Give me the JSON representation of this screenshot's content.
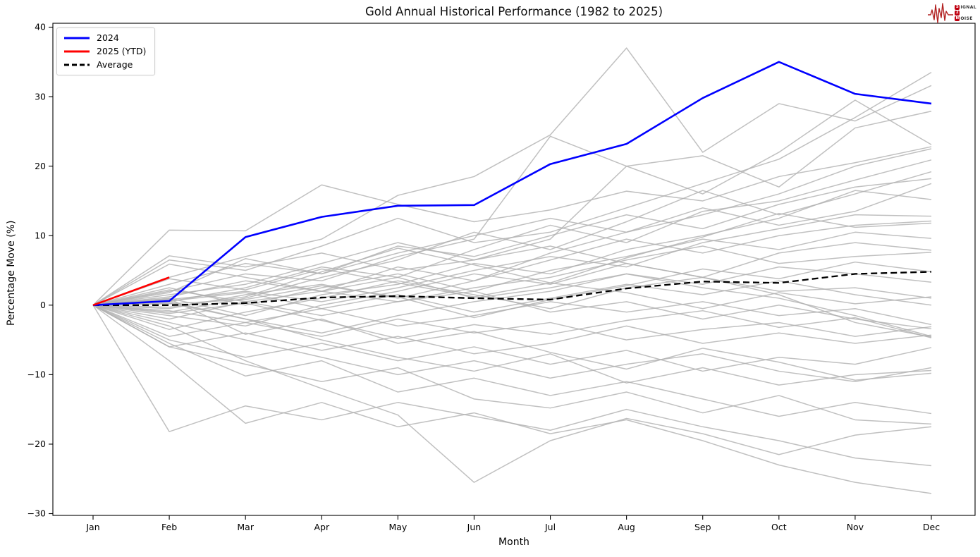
{
  "title": "Gold Annual Historical Performance (1982 to 2025)",
  "axes": {
    "x_label": "Month",
    "y_label": "Percentage Move (%)",
    "x_ticks": [
      "Jan",
      "Feb",
      "Mar",
      "Apr",
      "May",
      "Jun",
      "Jul",
      "Aug",
      "Sep",
      "Oct",
      "Nov",
      "Dec"
    ],
    "y_ticks": [
      {
        "v": 40,
        "label": "40"
      },
      {
        "v": 30,
        "label": "30"
      },
      {
        "v": 20,
        "label": "20"
      },
      {
        "v": 10,
        "label": "10"
      },
      {
        "v": 0,
        "label": "0"
      },
      {
        "v": -10,
        "label": "−10"
      },
      {
        "v": -20,
        "label": "−20"
      },
      {
        "v": -30,
        "label": "−30"
      }
    ]
  },
  "legend": [
    {
      "label": "2024",
      "color": "#0000ff",
      "dash": false
    },
    {
      "label": "2025 (YTD)",
      "color": "#ff0000",
      "dash": false
    },
    {
      "label": "Average",
      "color": "#000000",
      "dash": true
    }
  ],
  "logo": {
    "brand": "Signal 2 Noise",
    "s": "S",
    "ignal": "IGNAL",
    "two": "2",
    "n": "N",
    "oise": "OISE",
    "waveform_color": "#b22222"
  },
  "chart_data": {
    "type": "line",
    "title": "Gold Annual Historical Performance (1982 to 2025)",
    "xlabel": "Month",
    "ylabel": "Percentage Move (%)",
    "x": [
      "Jan",
      "Feb",
      "Mar",
      "Apr",
      "May",
      "Jun",
      "Jul",
      "Aug",
      "Sep",
      "Oct",
      "Nov",
      "Dec"
    ],
    "ylim": [
      -30,
      40
    ],
    "grid": false,
    "legend_position": "upper left",
    "main_series": [
      {
        "name": "Average",
        "color": "#000000",
        "style": "dashed",
        "width": 2.3,
        "values": [
          0,
          0.0,
          0.3,
          1.1,
          1.3,
          1.0,
          0.8,
          2.4,
          3.4,
          3.2,
          4.5,
          4.8
        ]
      },
      {
        "name": "2024",
        "color": "#0000ff",
        "style": "solid",
        "width": 2.6,
        "values": [
          0,
          0.6,
          9.8,
          12.7,
          14.3,
          14.4,
          20.3,
          23.2,
          29.8,
          35.0,
          30.4,
          29.0
        ]
      },
      {
        "name": "2025 (YTD)",
        "color": "#ff0000",
        "style": "solid",
        "width": 2.6,
        "values": [
          0,
          4.0
        ]
      }
    ],
    "background_series_style": {
      "color": "#b0b0b0",
      "opacity": 0.8,
      "width": 1.5,
      "note": "individual years 1982-2023, values estimated from pixels"
    },
    "background_series": [
      {
        "name": "hist-01",
        "values": [
          0,
          4.0,
          7.0,
          9.5,
          15.8,
          18.5,
          24.5,
          37.0,
          22.0,
          29.0,
          26.5,
          31.6
        ]
      },
      {
        "name": "hist-02",
        "values": [
          0,
          10.8,
          10.7,
          17.3,
          14.5,
          12.0,
          13.7,
          16.4,
          15.0,
          18.5,
          20.5,
          22.8
        ]
      },
      {
        "name": "hist-03",
        "values": [
          0,
          6.5,
          5.0,
          8.5,
          12.5,
          9.0,
          10.5,
          14.0,
          17.5,
          21.0,
          27.0,
          33.5
        ]
      },
      {
        "name": "hist-04",
        "values": [
          0,
          2.0,
          4.5,
          3.5,
          7.0,
          9.5,
          24.3,
          20.0,
          21.5,
          17.0,
          25.5,
          27.9
        ]
      },
      {
        "name": "hist-05",
        "values": [
          0,
          1.5,
          3.0,
          6.0,
          9.0,
          6.5,
          9.5,
          20.0,
          16.0,
          22.0,
          29.5,
          23.1
        ]
      },
      {
        "name": "hist-06",
        "values": [
          0,
          0.5,
          2.5,
          5.5,
          4.0,
          8.0,
          11.5,
          9.0,
          13.5,
          15.0,
          18.0,
          20.9
        ]
      },
      {
        "name": "hist-07",
        "values": [
          0,
          -1.0,
          1.0,
          4.0,
          6.5,
          10.5,
          8.0,
          12.0,
          16.5,
          13.0,
          16.0,
          19.2
        ]
      },
      {
        "name": "hist-08",
        "values": [
          0,
          3.0,
          6.0,
          4.5,
          8.5,
          7.0,
          10.0,
          13.0,
          11.0,
          14.5,
          17.0,
          18.2
        ]
      },
      {
        "name": "hist-09",
        "values": [
          0,
          -2.0,
          0.5,
          2.0,
          5.5,
          3.5,
          7.5,
          10.5,
          14.0,
          11.5,
          13.5,
          17.5
        ]
      },
      {
        "name": "hist-10",
        "values": [
          0,
          1.0,
          -1.5,
          1.5,
          3.0,
          6.0,
          4.5,
          8.0,
          10.0,
          12.5,
          16.5,
          15.2
        ]
      },
      {
        "name": "hist-11",
        "values": [
          0,
          0.8,
          2.0,
          0.5,
          2.5,
          5.0,
          7.0,
          5.5,
          9.0,
          11.0,
          13.0,
          12.8
        ]
      },
      {
        "name": "hist-12",
        "values": [
          0,
          -0.5,
          1.5,
          3.0,
          1.0,
          3.5,
          6.5,
          9.5,
          7.5,
          10.0,
          11.5,
          12.1
        ]
      },
      {
        "name": "hist-13",
        "values": [
          0,
          2.5,
          0.0,
          2.5,
          4.5,
          2.0,
          5.0,
          7.0,
          9.5,
          8.0,
          10.5,
          9.6
        ]
      },
      {
        "name": "hist-14",
        "values": [
          0,
          -1.5,
          -3.0,
          0.0,
          2.0,
          4.5,
          3.0,
          6.0,
          4.0,
          7.5,
          9.0,
          7.9
        ]
      },
      {
        "name": "hist-15",
        "values": [
          0,
          1.2,
          3.5,
          2.0,
          0.5,
          2.5,
          4.0,
          6.5,
          8.5,
          6.0,
          7.0,
          7.6
        ]
      },
      {
        "name": "hist-16",
        "values": [
          0,
          0.3,
          -2.0,
          -4.0,
          -1.5,
          0.5,
          2.0,
          4.5,
          3.0,
          5.5,
          4.5,
          3.3
        ]
      },
      {
        "name": "hist-17",
        "values": [
          0,
          -3.5,
          -1.0,
          1.0,
          3.5,
          1.5,
          -0.5,
          2.5,
          4.0,
          2.0,
          2.5,
          1.0
        ]
      },
      {
        "name": "hist-18",
        "values": [
          0,
          0.6,
          1.8,
          -0.5,
          1.5,
          -1.0,
          1.0,
          3.0,
          1.5,
          3.5,
          1.5,
          0.0
        ]
      },
      {
        "name": "hist-19",
        "values": [
          0,
          -0.8,
          -2.5,
          -0.5,
          -3.0,
          -1.5,
          0.5,
          -1.0,
          0.5,
          -1.5,
          -0.5,
          -2.8
        ]
      },
      {
        "name": "hist-20",
        "values": [
          0,
          2.2,
          0.5,
          -1.5,
          0.5,
          2.0,
          -1.0,
          0.5,
          -2.0,
          0.0,
          -2.0,
          -3.4
        ]
      },
      {
        "name": "hist-21",
        "values": [
          0,
          -4.5,
          -2.5,
          -4.5,
          -2.0,
          -4.0,
          -2.5,
          -5.0,
          -3.5,
          -2.5,
          -4.5,
          -3.1
        ]
      },
      {
        "name": "hist-22",
        "values": [
          0,
          -6.0,
          -4.0,
          -6.5,
          -4.5,
          -7.0,
          -5.5,
          -3.0,
          -5.5,
          -4.0,
          -5.5,
          -4.3
        ]
      },
      {
        "name": "hist-23",
        "values": [
          0,
          5.9,
          4.0,
          2.0,
          4.0,
          1.0,
          2.5,
          4.5,
          2.5,
          1.0,
          -1.5,
          -4.5
        ]
      },
      {
        "name": "hist-24",
        "values": [
          0,
          7.1,
          5.5,
          7.5,
          5.0,
          6.5,
          8.5,
          6.0,
          4.0,
          1.5,
          -2.5,
          -4.6
        ]
      },
      {
        "name": "hist-25",
        "values": [
          0,
          -5.0,
          -7.5,
          -5.5,
          -8.0,
          -6.0,
          -8.5,
          -6.5,
          -9.5,
          -7.5,
          -8.5,
          -6.1
        ]
      },
      {
        "name": "hist-26",
        "values": [
          0,
          -2.5,
          -5.0,
          -7.5,
          -10.0,
          -8.0,
          -10.5,
          -8.5,
          -7.0,
          -9.5,
          -11.0,
          -9.0
        ]
      },
      {
        "name": "hist-27",
        "values": [
          0,
          0.5,
          -2.0,
          -5.0,
          -7.5,
          -9.5,
          -7.0,
          -11.2,
          -9.0,
          -11.5,
          -10.0,
          -9.4
        ]
      },
      {
        "name": "hist-28",
        "values": [
          0,
          -5.5,
          -10.2,
          -8.0,
          -12.5,
          -10.5,
          -13.0,
          -11.0,
          -13.5,
          -16.0,
          -14.0,
          -15.6
        ]
      },
      {
        "name": "hist-29",
        "values": [
          0,
          -6.0,
          -8.5,
          -11.0,
          -9.0,
          -13.5,
          -14.8,
          -12.5,
          -15.5,
          -13.0,
          -16.5,
          -17.1
        ]
      },
      {
        "name": "hist-30",
        "values": [
          0,
          -3.0,
          -8.0,
          -12.0,
          -15.8,
          -25.5,
          -19.5,
          -16.3,
          -18.5,
          -21.5,
          -18.7,
          -17.5
        ]
      },
      {
        "name": "hist-31",
        "values": [
          0,
          -18.2,
          -14.5,
          -16.5,
          -14.0,
          -16.0,
          -18.0,
          -15.0,
          -17.5,
          -19.5,
          -22.0,
          -23.1
        ]
      },
      {
        "name": "hist-32",
        "values": [
          0,
          -8.0,
          -17.0,
          -14.0,
          -17.5,
          -15.5,
          -18.5,
          -16.5,
          -19.5,
          -23.0,
          -25.5,
          -27.1
        ]
      },
      {
        "name": "hist-33",
        "values": [
          0,
          1.8,
          6.7,
          4.5,
          7.5,
          10.0,
          12.5,
          10.5,
          13.0,
          16.0,
          20.0,
          22.5
        ]
      },
      {
        "name": "hist-34",
        "values": [
          0,
          0.2,
          0.8,
          2.8,
          1.2,
          -1.8,
          0.8,
          2.8,
          5.2,
          3.8,
          6.2,
          4.8
        ]
      },
      {
        "name": "hist-35",
        "values": [
          0,
          -1.2,
          0.3,
          -2.2,
          -4.8,
          -2.8,
          -4.2,
          -2.2,
          -0.8,
          -3.2,
          -1.8,
          -4.7
        ]
      },
      {
        "name": "hist-36",
        "values": [
          0,
          3.8,
          2.2,
          5.2,
          3.2,
          1.2,
          3.2,
          1.8,
          -0.5,
          1.8,
          0.2,
          1.2
        ]
      },
      {
        "name": "hist-37",
        "values": [
          0,
          -0.3,
          1.2,
          4.8,
          8.2,
          5.8,
          3.2,
          6.8,
          9.8,
          13.2,
          11.2,
          11.8
        ]
      },
      {
        "name": "hist-38",
        "values": [
          0,
          0.9,
          -4.2,
          -2.0,
          -5.5,
          -3.8,
          -6.8,
          -9.2,
          -6.2,
          -8.2,
          -10.8,
          -9.8
        ]
      }
    ]
  }
}
